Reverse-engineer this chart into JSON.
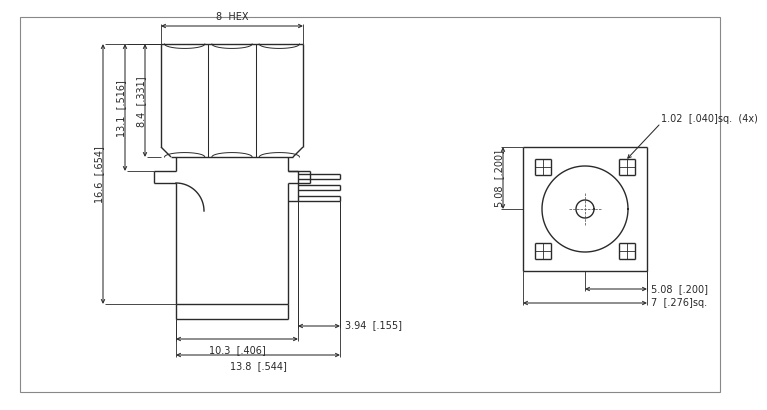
{
  "bg_color": "#ffffff",
  "line_color": "#2a2a2a",
  "lw": 1.0,
  "dim_lw": 0.75,
  "fs": 7.0,
  "dimensions": {
    "hex_width": "8  HEX",
    "d1": "16.6  [.654]",
    "d2": "13.1  [.516]",
    "d3": "8.4  [.331]",
    "d4": "3.94  [.155]",
    "d5": "10.3  [.406]",
    "d6": "13.8  [.544]",
    "d7": "5.08  [.200]",
    "d8": "1.02  [.040]sq.  (4x)",
    "d9": "5.08  [.200]",
    "d10": "7  [.276]sq."
  }
}
